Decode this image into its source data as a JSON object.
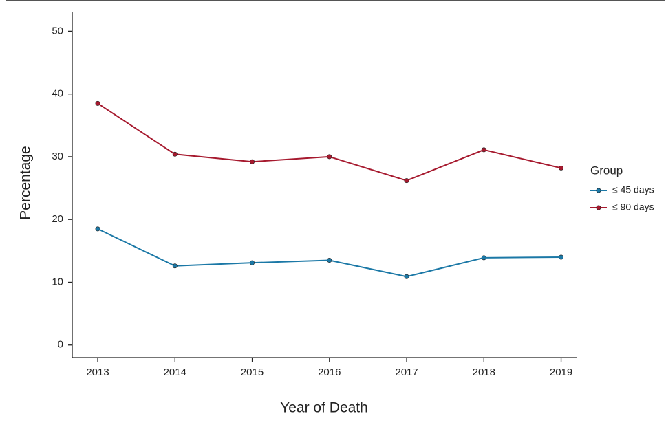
{
  "chart_data": {
    "type": "line",
    "x_label": "Year of Death",
    "y_label": "Percentage",
    "x": [
      2013,
      2014,
      2015,
      2016,
      2017,
      2018,
      2019
    ],
    "series": [
      {
        "name": "≤ 45 days",
        "color": "#1b78a6",
        "values": [
          18.5,
          12.6,
          13.1,
          13.5,
          10.9,
          13.9,
          14.0
        ]
      },
      {
        "name": "≤ 90 days",
        "color": "#a6192e",
        "values": [
          38.5,
          30.4,
          29.2,
          30.0,
          26.2,
          31.1,
          28.2
        ]
      }
    ],
    "xlim": [
      2012.67,
      2019.2
    ],
    "xticks": [
      2013,
      2014,
      2015,
      2016,
      2017,
      2018,
      2019
    ],
    "ylim": [
      -2,
      53
    ],
    "yticks": [
      0,
      10,
      20,
      30,
      40,
      50
    ],
    "legend_title": "Group",
    "legend_position": "right"
  }
}
